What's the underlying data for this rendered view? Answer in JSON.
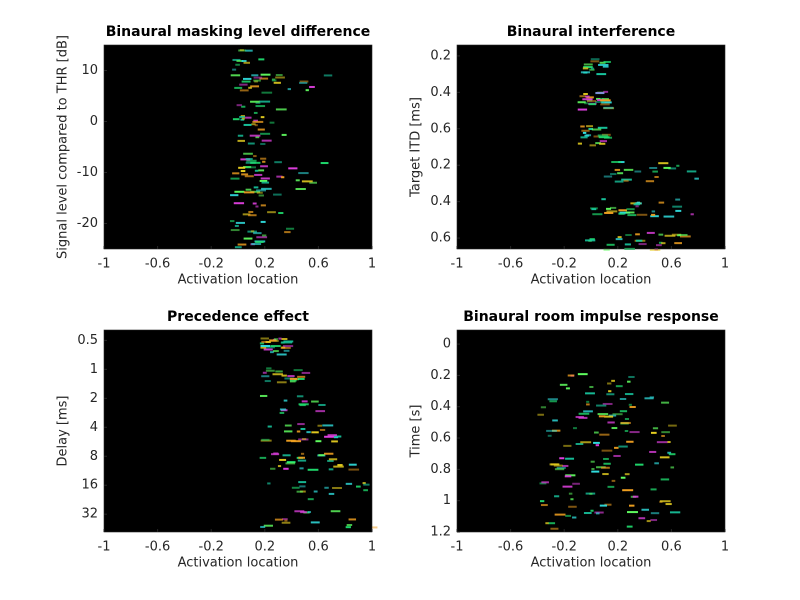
{
  "chart_data": [
    {
      "type": "heatmap",
      "title": "Binaural masking level difference",
      "xlabel": "Activation location",
      "ylabel": "Signal level compared to THR [dB]",
      "xlim": [
        -1,
        1
      ],
      "xticks": [
        -1,
        -0.6,
        -0.2,
        0.2,
        0.6,
        1
      ],
      "ylim": [
        -25,
        15
      ],
      "yticks": [
        -20,
        -10,
        0,
        10
      ],
      "y_reversed": false,
      "y_log": false
    },
    {
      "type": "heatmap",
      "title": "Binaural interference",
      "xlabel": "Activation location",
      "ylabel": "Target ITD [ms]",
      "xlim": [
        -1,
        1
      ],
      "xticks": [
        -1,
        -0.6,
        -0.2,
        0.2,
        0.6,
        1
      ],
      "ylim": [
        0.7,
        6.3
      ],
      "yticks": [
        {
          "value": 1,
          "label": "0.2"
        },
        {
          "value": 2,
          "label": "0.4"
        },
        {
          "value": 3,
          "label": "0.6"
        },
        {
          "value": 4,
          "label": "0.2"
        },
        {
          "value": 5,
          "label": "0.4"
        },
        {
          "value": 6,
          "label": "0.6"
        }
      ],
      "y_reversed": true,
      "y_log": false
    },
    {
      "type": "heatmap",
      "title": "Precedence effect",
      "xlabel": "Activation location",
      "ylabel": "Delay [ms]",
      "xlim": [
        -1,
        1
      ],
      "xticks": [
        -1,
        -0.6,
        -0.2,
        0.2,
        0.6,
        1
      ],
      "ylim": [
        0.39,
        49
      ],
      "yticks": [
        0.5,
        1,
        2,
        4,
        8,
        16,
        32
      ],
      "y_reversed": true,
      "y_log": true
    },
    {
      "type": "heatmap",
      "title": "Binaural room impulse response",
      "xlabel": "Activation location",
      "ylabel": "Time [s]",
      "xlim": [
        -1,
        1
      ],
      "xticks": [
        -1,
        -0.6,
        -0.2,
        0.2,
        0.6,
        1
      ],
      "ylim": [
        -0.09,
        1.2
      ],
      "yticks": [
        0,
        0.2,
        0.4,
        0.6,
        0.8,
        1,
        1.2
      ],
      "y_reversed": true,
      "y_log": false
    }
  ]
}
